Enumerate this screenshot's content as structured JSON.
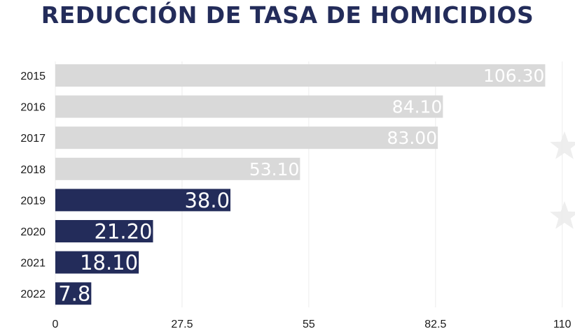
{
  "colors": {
    "title": "#232c5a",
    "past_bar": "#d9d9d9",
    "recent_bar": "#232c5a",
    "grid": "#ececec",
    "decor_star": "#eeeeee"
  },
  "chart_data": {
    "type": "bar",
    "orientation": "horizontal",
    "title": "REDUCCIÓN DE TASA DE HOMICIDIOS",
    "xlabel": "",
    "ylabel": "",
    "categories": [
      "2015",
      "2016",
      "2017",
      "2018",
      "2019",
      "2020",
      "2021",
      "2022"
    ],
    "values": [
      106.3,
      84.1,
      83.0,
      53.1,
      38.0,
      21.2,
      18.1,
      7.8
    ],
    "value_labels": [
      "106.30",
      "84.10",
      "83.00",
      "53.10",
      "38.0",
      "21.20",
      "18.10",
      "7.8"
    ],
    "bar_colors": [
      "#d9d9d9",
      "#d9d9d9",
      "#d9d9d9",
      "#d9d9d9",
      "#232c5a",
      "#232c5a",
      "#232c5a",
      "#232c5a"
    ],
    "xlim": [
      0,
      110
    ],
    "xticks": [
      0,
      27.5,
      55,
      82.5,
      110
    ],
    "xtick_labels": [
      "0",
      "27.5",
      "55",
      "82.5",
      "110"
    ],
    "grid": true,
    "legend": "none"
  }
}
